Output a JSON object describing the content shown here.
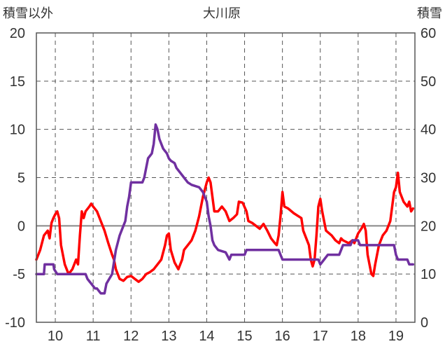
{
  "chart_data": {
    "type": "line",
    "title": "大川原",
    "ylabel_left": "積雪以外",
    "ylabel_right": "積雪",
    "ylim_left": [
      -10,
      20
    ],
    "ylim_right": [
      0,
      60
    ],
    "yticks_left": [
      "20",
      "15",
      "10",
      "5",
      "0",
      "-5",
      "-10"
    ],
    "yticks_right": [
      "60",
      "50",
      "40",
      "30",
      "20",
      "10",
      "0"
    ],
    "xlim": [
      9.5,
      19.5
    ],
    "xticks": [
      "10",
      "11",
      "12",
      "13",
      "14",
      "15",
      "16",
      "17",
      "18",
      "19"
    ],
    "grid": true,
    "colors": {
      "red": "#ff0000",
      "purple": "#7030a0",
      "grid": "#555555",
      "zero": "#888888"
    },
    "series": [
      {
        "axis": "left",
        "color": "#ff0000",
        "points": [
          [
            9.5,
            -3.5
          ],
          [
            9.6,
            -2.5
          ],
          [
            9.7,
            -1.0
          ],
          [
            9.8,
            -0.5
          ],
          [
            9.85,
            -1.3
          ],
          [
            9.9,
            0.3
          ],
          [
            9.95,
            0.8
          ],
          [
            10.0,
            1.2
          ],
          [
            10.05,
            1.5
          ],
          [
            10.1,
            0.8
          ],
          [
            10.15,
            -2.0
          ],
          [
            10.25,
            -4.0
          ],
          [
            10.35,
            -5.0
          ],
          [
            10.45,
            -4.5
          ],
          [
            10.55,
            -3.5
          ],
          [
            10.6,
            -4.0
          ],
          [
            10.65,
            -1.0
          ],
          [
            10.7,
            1.5
          ],
          [
            10.75,
            0.8
          ],
          [
            10.8,
            1.5
          ],
          [
            10.9,
            2.0
          ],
          [
            10.95,
            2.3
          ],
          [
            11.0,
            2.0
          ],
          [
            11.1,
            1.5
          ],
          [
            11.2,
            0.5
          ],
          [
            11.3,
            -0.5
          ],
          [
            11.4,
            -1.8
          ],
          [
            11.5,
            -3.0
          ],
          [
            11.55,
            -3.5
          ],
          [
            11.6,
            -4.5
          ],
          [
            11.7,
            -5.5
          ],
          [
            11.8,
            -5.7
          ],
          [
            11.9,
            -5.3
          ],
          [
            12.0,
            -5.2
          ],
          [
            12.1,
            -5.5
          ],
          [
            12.2,
            -5.8
          ],
          [
            12.3,
            -5.5
          ],
          [
            12.4,
            -5.0
          ],
          [
            12.5,
            -4.8
          ],
          [
            12.6,
            -4.5
          ],
          [
            12.7,
            -4.0
          ],
          [
            12.8,
            -3.5
          ],
          [
            12.9,
            -2.0
          ],
          [
            12.95,
            -1.0
          ],
          [
            13.0,
            -0.8
          ],
          [
            13.05,
            -2.5
          ],
          [
            13.15,
            -3.8
          ],
          [
            13.25,
            -4.5
          ],
          [
            13.35,
            -3.5
          ],
          [
            13.4,
            -2.5
          ],
          [
            13.5,
            -2.0
          ],
          [
            13.6,
            -1.5
          ],
          [
            13.7,
            -0.5
          ],
          [
            13.8,
            1.0
          ],
          [
            13.9,
            3.0
          ],
          [
            14.0,
            4.5
          ],
          [
            14.05,
            5.0
          ],
          [
            14.1,
            4.5
          ],
          [
            14.15,
            3.0
          ],
          [
            14.2,
            1.5
          ],
          [
            14.3,
            1.5
          ],
          [
            14.4,
            2.0
          ],
          [
            14.5,
            1.5
          ],
          [
            14.55,
            1.0
          ],
          [
            14.6,
            0.5
          ],
          [
            14.7,
            0.8
          ],
          [
            14.8,
            1.2
          ],
          [
            14.85,
            2.5
          ],
          [
            14.95,
            2.4
          ],
          [
            15.05,
            1.5
          ],
          [
            15.1,
            0.5
          ],
          [
            15.2,
            0.3
          ],
          [
            15.3,
            0.0
          ],
          [
            15.4,
            -0.3
          ],
          [
            15.5,
            0.2
          ],
          [
            15.6,
            -0.5
          ],
          [
            15.7,
            -1.3
          ],
          [
            15.8,
            -1.8
          ],
          [
            15.85,
            -2.0
          ],
          [
            15.9,
            -1.0
          ],
          [
            15.95,
            1.0
          ],
          [
            16.0,
            3.5
          ],
          [
            16.05,
            2.0
          ],
          [
            16.15,
            1.8
          ],
          [
            16.3,
            1.3
          ],
          [
            16.5,
            0.8
          ],
          [
            16.55,
            -0.5
          ],
          [
            16.7,
            -2.0
          ],
          [
            16.75,
            -3.5
          ],
          [
            16.8,
            -4.2
          ],
          [
            16.85,
            -3.5
          ],
          [
            16.9,
            -1.0
          ],
          [
            16.95,
            2.0
          ],
          [
            17.0,
            2.8
          ],
          [
            17.05,
            1.5
          ],
          [
            17.1,
            0.5
          ],
          [
            17.15,
            -0.5
          ],
          [
            17.3,
            -1.0
          ],
          [
            17.4,
            -1.5
          ],
          [
            17.5,
            -1.8
          ],
          [
            17.55,
            -1.3
          ],
          [
            17.6,
            -1.5
          ],
          [
            17.75,
            -1.8
          ],
          [
            17.85,
            -1.5
          ],
          [
            17.9,
            -1.8
          ],
          [
            18.0,
            -0.8
          ],
          [
            18.1,
            -0.2
          ],
          [
            18.15,
            0.2
          ],
          [
            18.2,
            -0.5
          ],
          [
            18.25,
            -3.0
          ],
          [
            18.3,
            -4.0
          ],
          [
            18.35,
            -5.0
          ],
          [
            18.4,
            -5.2
          ],
          [
            18.45,
            -4.0
          ],
          [
            18.5,
            -3.0
          ],
          [
            18.55,
            -2.0
          ],
          [
            18.6,
            -1.5
          ],
          [
            18.65,
            -1.0
          ],
          [
            18.75,
            -0.5
          ],
          [
            18.85,
            0.5
          ],
          [
            18.9,
            2.0
          ],
          [
            18.95,
            3.5
          ],
          [
            19.0,
            4.0
          ],
          [
            19.05,
            5.5
          ],
          [
            19.1,
            3.5
          ],
          [
            19.2,
            2.5
          ],
          [
            19.3,
            2.0
          ],
          [
            19.35,
            2.5
          ],
          [
            19.4,
            1.5
          ],
          [
            19.45,
            1.8
          ]
        ]
      },
      {
        "axis": "right",
        "color": "#7030a0",
        "points": [
          [
            9.5,
            10
          ],
          [
            9.7,
            10
          ],
          [
            9.72,
            12
          ],
          [
            9.95,
            12
          ],
          [
            9.97,
            11
          ],
          [
            10.05,
            10
          ],
          [
            10.8,
            10
          ],
          [
            10.85,
            9
          ],
          [
            10.95,
            8
          ],
          [
            11.05,
            7
          ],
          [
            11.1,
            7
          ],
          [
            11.2,
            6
          ],
          [
            11.3,
            6
          ],
          [
            11.35,
            8
          ],
          [
            11.5,
            10
          ],
          [
            11.6,
            15
          ],
          [
            11.7,
            18
          ],
          [
            11.8,
            20
          ],
          [
            11.85,
            21
          ],
          [
            11.9,
            24
          ],
          [
            11.95,
            26
          ],
          [
            12.0,
            29
          ],
          [
            12.3,
            29
          ],
          [
            12.35,
            30
          ],
          [
            12.4,
            32
          ],
          [
            12.45,
            34
          ],
          [
            12.55,
            35
          ],
          [
            12.6,
            37
          ],
          [
            12.65,
            41
          ],
          [
            12.7,
            40
          ],
          [
            12.75,
            38
          ],
          [
            12.8,
            37
          ],
          [
            12.85,
            36
          ],
          [
            12.95,
            35
          ],
          [
            13.0,
            34
          ],
          [
            13.05,
            33.5
          ],
          [
            13.15,
            33
          ],
          [
            13.2,
            32
          ],
          [
            13.3,
            31
          ],
          [
            13.4,
            30
          ],
          [
            13.5,
            29
          ],
          [
            13.6,
            28.5
          ],
          [
            13.8,
            28
          ],
          [
            13.9,
            27
          ],
          [
            14.0,
            25
          ],
          [
            14.05,
            22
          ],
          [
            14.1,
            20
          ],
          [
            14.15,
            17
          ],
          [
            14.2,
            16
          ],
          [
            14.3,
            15
          ],
          [
            14.5,
            14.5
          ],
          [
            14.6,
            13
          ],
          [
            14.65,
            14
          ],
          [
            15.0,
            14
          ],
          [
            15.05,
            15
          ],
          [
            15.9,
            15
          ],
          [
            15.95,
            14
          ],
          [
            16.0,
            13
          ],
          [
            16.95,
            13
          ],
          [
            17.0,
            12
          ],
          [
            17.1,
            13
          ],
          [
            17.2,
            14
          ],
          [
            17.5,
            14
          ],
          [
            17.55,
            15
          ],
          [
            17.6,
            16
          ],
          [
            17.8,
            16
          ],
          [
            17.85,
            17
          ],
          [
            18.0,
            17
          ],
          [
            18.05,
            16
          ],
          [
            18.95,
            16
          ],
          [
            19.0,
            14
          ],
          [
            19.05,
            13
          ],
          [
            19.3,
            13
          ],
          [
            19.35,
            12
          ],
          [
            19.45,
            12
          ]
        ]
      }
    ]
  }
}
